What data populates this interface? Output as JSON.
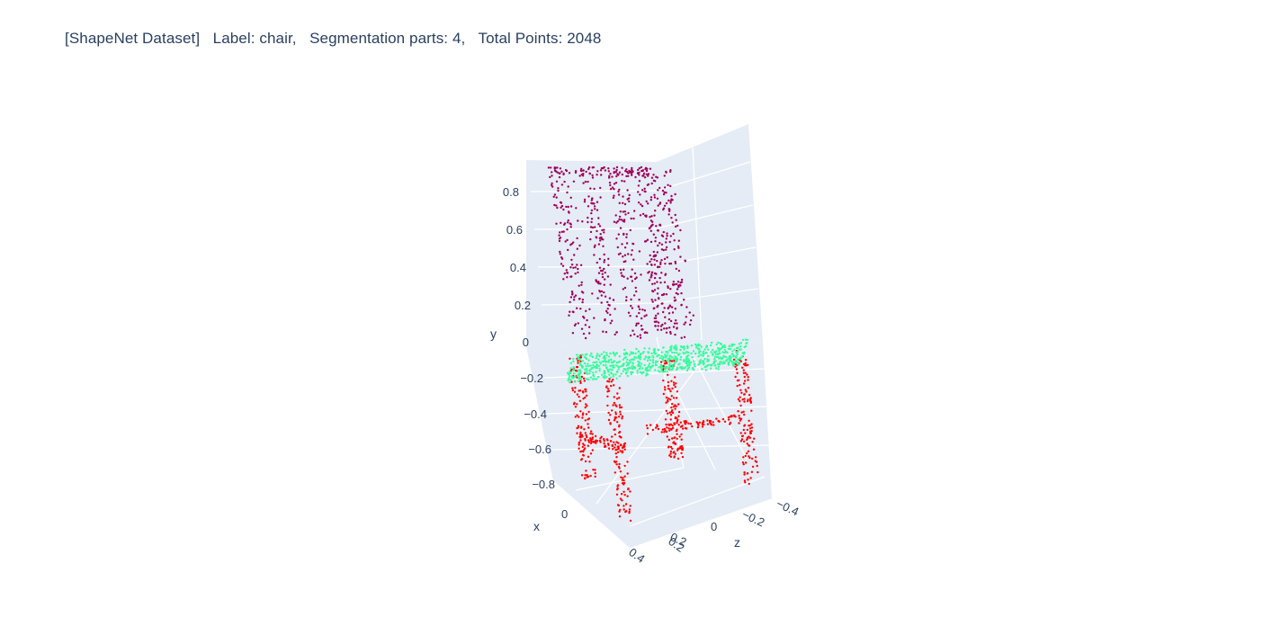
{
  "title": "[ShapeNet Dataset]   Label: chair,   Segmentation parts: 4,   Total Points: 2048",
  "chart_data": {
    "type": "scatter3d",
    "title": "[ShapeNet Dataset]   Label: chair,   Segmentation parts: 4,   Total Points: 2048",
    "label": "chair",
    "segmentation_parts": 4,
    "total_points": 2048,
    "axes": {
      "x": {
        "title": "x",
        "ticks": [
          "0",
          "0.2",
          "0.4"
        ]
      },
      "y": {
        "title": "y",
        "ticks": [
          "0.8",
          "0.6",
          "0.4",
          "0.2",
          "0",
          "−0.2",
          "−0.4",
          "−0.6",
          "−0.8"
        ]
      },
      "z": {
        "title": "z",
        "ticks": [
          "−0.4",
          "−0.2",
          "0",
          "0.2"
        ]
      }
    },
    "background_color": "#e5ecf6",
    "series": [
      {
        "part": "back",
        "color": "#a0005a"
      },
      {
        "part": "seat",
        "color": "#33ff99"
      },
      {
        "part": "legs",
        "color": "#ff0000"
      }
    ],
    "grid": true
  }
}
